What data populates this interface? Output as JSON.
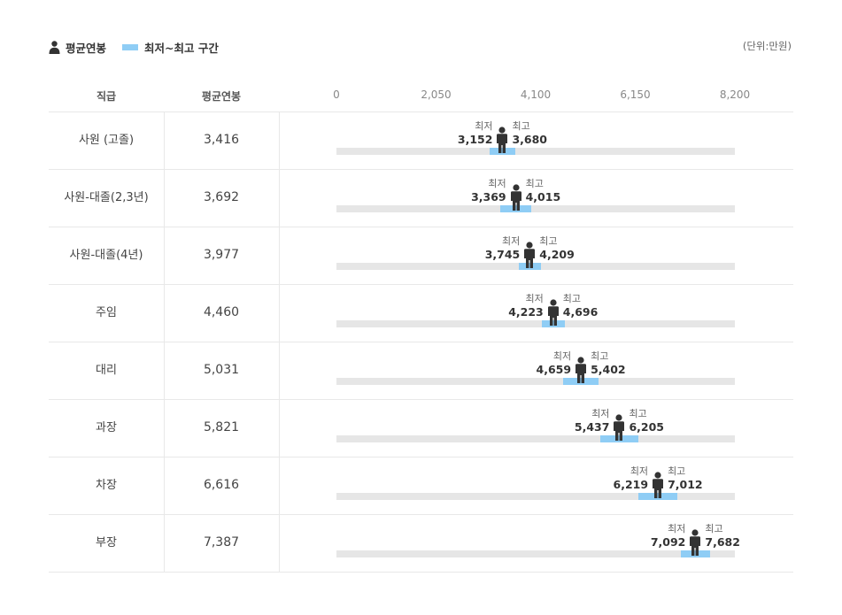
{
  "legend": {
    "avg_label": "평균연봉",
    "range_label": "최저~최고 구간",
    "unit": "(단위:만원)",
    "range_color": "#8fcdf5",
    "track_color": "#e6e6e6",
    "person_icon": "person-icon"
  },
  "headers": {
    "rank": "직급",
    "avg": "평균연봉"
  },
  "chart_data": {
    "type": "range-dot",
    "xlim": [
      0,
      8200
    ],
    "ticks": [
      0,
      2050,
      4100,
      6150,
      8200
    ],
    "tick_labels": [
      "0",
      "2,050",
      "4,100",
      "6,150",
      "8,200"
    ],
    "min_caption": "최저",
    "max_caption": "최고",
    "rows": [
      {
        "rank": "사원 (고졸)",
        "avg": 3416,
        "avg_label": "3,416",
        "min": 3152,
        "min_label": "3,152",
        "max": 3680,
        "max_label": "3,680"
      },
      {
        "rank": "사원-대졸(2,3년)",
        "avg": 3692,
        "avg_label": "3,692",
        "min": 3369,
        "min_label": "3,369",
        "max": 4015,
        "max_label": "4,015"
      },
      {
        "rank": "사원-대졸(4년)",
        "avg": 3977,
        "avg_label": "3,977",
        "min": 3745,
        "min_label": "3,745",
        "max": 4209,
        "max_label": "4,209"
      },
      {
        "rank": "주임",
        "avg": 4460,
        "avg_label": "4,460",
        "min": 4223,
        "min_label": "4,223",
        "max": 4696,
        "max_label": "4,696"
      },
      {
        "rank": "대리",
        "avg": 5031,
        "avg_label": "5,031",
        "min": 4659,
        "min_label": "4,659",
        "max": 5402,
        "max_label": "5,402"
      },
      {
        "rank": "과장",
        "avg": 5821,
        "avg_label": "5,821",
        "min": 5437,
        "min_label": "5,437",
        "max": 6205,
        "max_label": "6,205"
      },
      {
        "rank": "차장",
        "avg": 6616,
        "avg_label": "6,616",
        "min": 6219,
        "min_label": "6,219",
        "max": 7012,
        "max_label": "7,012"
      },
      {
        "rank": "부장",
        "avg": 7387,
        "avg_label": "7,387",
        "min": 7092,
        "min_label": "7,092",
        "max": 7682,
        "max_label": "7,682"
      }
    ]
  }
}
